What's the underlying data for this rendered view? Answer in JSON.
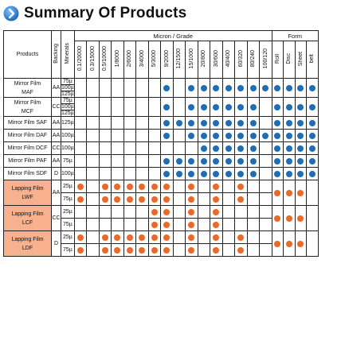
{
  "title": "Summary Of Products",
  "colors": {
    "blue_dot": "#1f6eb5",
    "orange_dot": "#e9682c",
    "lapping_fill": "#f7b18e"
  },
  "header": {
    "products": "Products",
    "backing": "Backing",
    "minerals": "Minerals",
    "micron_grade": "Micron / Grade",
    "form": "Form",
    "grades": [
      "0.1/20000",
      "0.3/15000",
      "0.5/10000",
      "1/8000",
      "2/6000",
      "3/4000",
      "5/3000",
      "9/2000",
      "12/1500",
      "15/1000",
      "20/800",
      "30/600",
      "40/400",
      "60/320",
      "80/240",
      "100/120"
    ],
    "forms": [
      "Roll",
      "Disc",
      "Sheet",
      "belt"
    ]
  },
  "groups": [
    {
      "name": [
        "Mirror Film",
        "MAF"
      ],
      "lapping": false,
      "backing": "AA",
      "rows": [
        {
          "micron": "75µ",
          "grades": "",
          "forms": ""
        },
        {
          "micron": "100µ",
          "grades": "",
          "forms": ""
        },
        {
          "micron": "125µ",
          "grades": "",
          "forms": ""
        }
      ],
      "span_grades": "0000000101111111",
      "span_forms": "1111",
      "color": "b"
    },
    {
      "name": [
        "Mirror Film",
        "MCF"
      ],
      "lapping": false,
      "backing": "CC",
      "rows": [
        {
          "micron": "75µ"
        },
        {
          "micron": "100µ"
        },
        {
          "micron": "125µ"
        }
      ],
      "span_grades": "0000000101111110",
      "span_forms": "1111",
      "color": "b"
    },
    {
      "name": [
        "Mirror Film SAF"
      ],
      "lapping": false,
      "backing": "AA",
      "rows": [
        {
          "micron": "125µ",
          "grades": "0000000111111110",
          "forms": "1111"
        }
      ],
      "color": "b"
    },
    {
      "name": [
        "Mirror Film DAF"
      ],
      "lapping": false,
      "backing": "AA",
      "rows": [
        {
          "micron": "100µ",
          "grades": "0000000101111111",
          "forms": "1111"
        }
      ],
      "color": "b"
    },
    {
      "name": [
        "Mirror Film DCF"
      ],
      "lapping": false,
      "backing": "CC",
      "rows": [
        {
          "micron": "100µ",
          "grades": "0000000000111110",
          "forms": "1111"
        }
      ],
      "color": "b"
    },
    {
      "name": [
        "Mirror Film PAF"
      ],
      "lapping": false,
      "backing": "AA",
      "rows": [
        {
          "micron": "75µ",
          "grades": "0000000111111110",
          "forms": "1111"
        }
      ],
      "color": "b"
    },
    {
      "name": [
        "Mirror Film SDF"
      ],
      "lapping": false,
      "backing": "D",
      "rows": [
        {
          "micron": "100µ",
          "grades": "0000000111111110",
          "forms": "1111"
        }
      ],
      "color": "b"
    },
    {
      "name": [
        "Lapping Film",
        "LWF"
      ],
      "lapping": true,
      "backing": "AA",
      "rows": [
        {
          "micron": "25µ",
          "grades": "1011111101010100",
          "forms": ""
        },
        {
          "micron": "75µ",
          "grades": "1011111101010100",
          "forms": ""
        }
      ],
      "span_forms": "1110",
      "color": "o"
    },
    {
      "name": [
        "Lapping Film",
        "LCF"
      ],
      "lapping": true,
      "backing": "CC",
      "rows": [
        {
          "micron": "25µ",
          "grades": "0000001101010000",
          "forms": ""
        },
        {
          "micron": "75µ",
          "grades": "0000001101010000",
          "forms": ""
        }
      ],
      "span_forms": "1110",
      "color": "o"
    },
    {
      "name": [
        "Lapping Film",
        "LDF"
      ],
      "lapping": true,
      "backing": "D",
      "rows": [
        {
          "micron": "25µ",
          "grades": "1011111101010100",
          "forms": ""
        },
        {
          "micron": "75µ",
          "grades": "1011111101010100",
          "forms": ""
        }
      ],
      "span_forms": "1110",
      "color": "o"
    }
  ]
}
